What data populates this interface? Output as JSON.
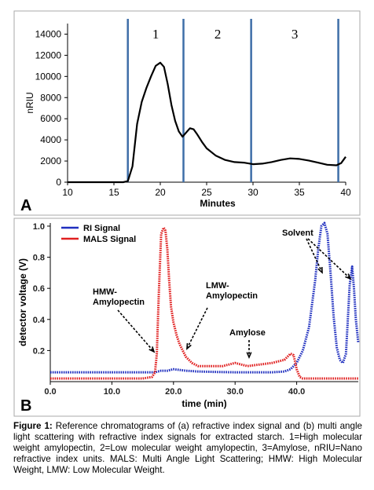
{
  "chart_data": [
    {
      "type": "line",
      "panel": "A",
      "xlabel": "Minutes",
      "ylabel": "nRIU",
      "xlim": [
        10,
        40
      ],
      "ylim": [
        0,
        15000
      ],
      "xticks": [
        10,
        15,
        20,
        25,
        30,
        35,
        40
      ],
      "yticks": [
        0,
        2000,
        4000,
        6000,
        8000,
        10000,
        12000,
        14000
      ],
      "ytick_labels": [
        "0",
        "2000",
        "4000",
        "6000",
        "8000",
        "10000",
        "12000",
        "14000"
      ],
      "region_lines": [
        16.5,
        22.5,
        29.8,
        39.2
      ],
      "regions": [
        {
          "label": "1",
          "x": 19.5
        },
        {
          "label": "2",
          "x": 26.2
        },
        {
          "label": "3",
          "x": 34.5
        }
      ],
      "series": [
        {
          "color": "#000000",
          "x": [
            10,
            16,
            16.5,
            17,
            17.5,
            18,
            18.5,
            19,
            19.5,
            20,
            20.4,
            20.8,
            21.2,
            21.6,
            22,
            22.4,
            22.8,
            23.2,
            23.6,
            24,
            24.5,
            25,
            26,
            27,
            28,
            29,
            30,
            31,
            32,
            33,
            34,
            35,
            36,
            37,
            38,
            39,
            39.5,
            40
          ],
          "y": [
            0,
            0,
            100,
            1500,
            5500,
            7600,
            8900,
            10000,
            11000,
            11300,
            10900,
            9300,
            7300,
            5800,
            4800,
            4300,
            4700,
            5100,
            5000,
            4500,
            3800,
            3200,
            2500,
            2100,
            1900,
            1850,
            1700,
            1750,
            1900,
            2100,
            2250,
            2200,
            2050,
            1850,
            1650,
            1600,
            1800,
            2400
          ]
        }
      ]
    },
    {
      "type": "line",
      "panel": "B",
      "xlabel": "time (min)",
      "ylabel": "detector voltage (V)",
      "xlim": [
        0,
        50
      ],
      "ylim": [
        0,
        1.02
      ],
      "xticks": [
        0,
        10,
        20,
        30,
        40
      ],
      "xtick_labels": [
        "0.0",
        "10.0",
        "20.0",
        "30.0",
        "40.0"
      ],
      "yticks": [
        0.2,
        0.4,
        0.6,
        0.8,
        1.0
      ],
      "ytick_labels": [
        "0.2",
        "0.4",
        "0.6",
        "0.8",
        "1.0"
      ],
      "legend_position": "top-left",
      "series": [
        {
          "name": "RI Signal",
          "color": "#1f2fbf",
          "style": "dotted",
          "x": [
            0,
            17,
            18,
            19,
            20,
            21,
            22,
            24,
            27,
            30,
            33,
            36,
            38,
            39,
            40,
            41,
            42,
            43,
            43.5,
            44,
            44.5,
            45,
            45.5,
            46,
            46.5,
            47,
            47.5,
            48,
            48.3,
            48.6,
            49,
            49.3,
            49.6,
            50
          ],
          "y": [
            0.06,
            0.06,
            0.07,
            0.07,
            0.08,
            0.075,
            0.07,
            0.065,
            0.062,
            0.06,
            0.06,
            0.06,
            0.065,
            0.08,
            0.12,
            0.2,
            0.35,
            0.65,
            0.85,
            1.0,
            1.02,
            0.95,
            0.7,
            0.42,
            0.22,
            0.14,
            0.12,
            0.18,
            0.4,
            0.62,
            0.74,
            0.6,
            0.4,
            0.25
          ]
        },
        {
          "name": "MALS Signal",
          "color": "#e02020",
          "style": "dotted",
          "x": [
            0,
            5,
            10,
            15,
            16.5,
            17,
            17.3,
            17.6,
            18,
            18.4,
            18.7,
            19,
            19.3,
            19.6,
            20,
            20.5,
            21,
            22,
            23,
            24,
            25,
            26,
            28,
            29,
            30,
            31,
            32,
            34,
            36,
            38,
            39,
            39.5,
            40,
            40.5,
            41,
            42,
            45,
            50
          ],
          "y": [
            0.02,
            0.02,
            0.02,
            0.02,
            0.03,
            0.06,
            0.18,
            0.55,
            0.95,
            0.99,
            0.97,
            0.85,
            0.65,
            0.48,
            0.38,
            0.3,
            0.24,
            0.16,
            0.12,
            0.1,
            0.1,
            0.1,
            0.1,
            0.11,
            0.12,
            0.11,
            0.1,
            0.11,
            0.12,
            0.14,
            0.18,
            0.17,
            0.08,
            0.03,
            0.02,
            0.02,
            0.02,
            0.02
          ]
        }
      ],
      "annotations": [
        {
          "text": [
            "HMW-",
            "Amylopectin"
          ]
        },
        {
          "text": [
            "LMW-",
            "Amylopectin"
          ]
        },
        {
          "text": [
            "Amylose"
          ]
        },
        {
          "text": [
            "Solvent"
          ]
        }
      ]
    }
  ],
  "caption": {
    "label": "Figure 1:",
    "text": " Reference chromatograms of (a) refractive index signal and (b) multi angle light scattering with refractive index signals for extracted starch. 1=High molecular weight amylopectin, 2=Low molecular weight amylopectin, 3=Amylose, nRIU=Nano refractive index units. MALS: Multi Angle Light Scattering; HMW: High Molecular Weight, LMW: Low Molecular Weight."
  }
}
